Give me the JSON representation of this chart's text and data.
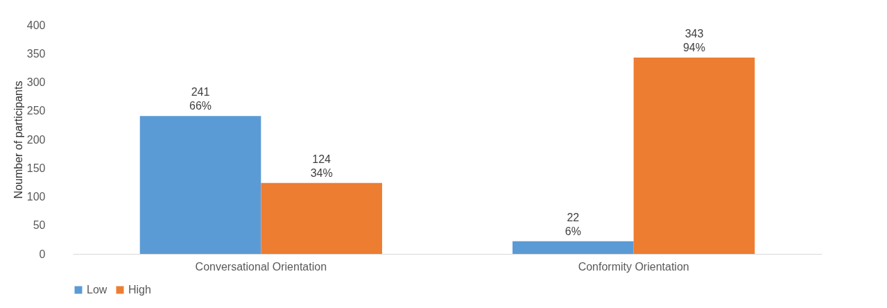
{
  "chart_data": {
    "type": "bar",
    "ylabel": "Noumber of participants",
    "categories": [
      "Conversational Orientation",
      "Conformity Orientation"
    ],
    "series": [
      {
        "name": "Low",
        "color": "#5b9bd5",
        "values": [
          241,
          22
        ],
        "value_labels": [
          "241\n66%",
          "22\n6%"
        ]
      },
      {
        "name": "High",
        "color": "#ed7d31",
        "values": [
          124,
          343
        ],
        "value_labels": [
          "124\n34%",
          "343\n94%"
        ]
      }
    ],
    "ylim": [
      0,
      400
    ],
    "yticks": [
      0,
      50,
      100,
      150,
      200,
      250,
      300,
      350,
      400
    ],
    "grid": false,
    "legend": "bottom"
  }
}
